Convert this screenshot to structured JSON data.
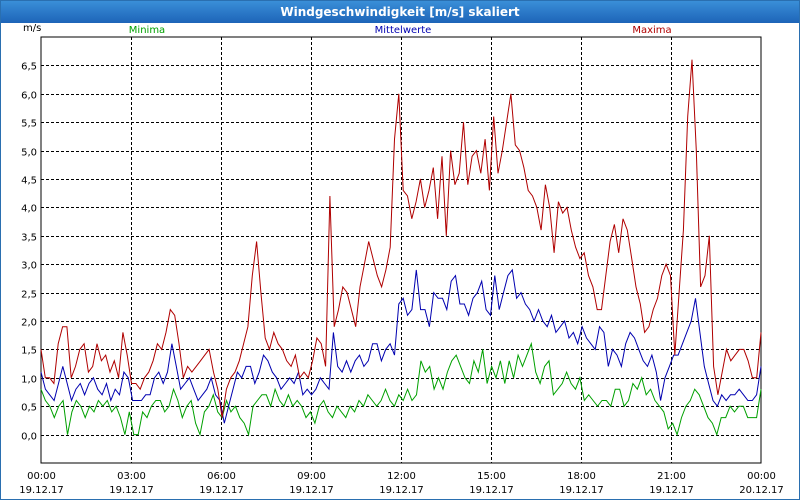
{
  "window": {
    "title": "Windgeschwindigkeit [m/s] skaliert"
  },
  "chart_data": {
    "type": "line",
    "title": "Windgeschwindigkeit [m/s] skaliert",
    "ylabel": "m/s",
    "xlabel": "",
    "ylim": [
      -0.5,
      7.0
    ],
    "yticks": [
      0.0,
      0.5,
      1.0,
      1.5,
      2.0,
      2.5,
      3.0,
      3.5,
      4.0,
      4.5,
      5.0,
      5.5,
      6.0,
      6.5
    ],
    "ytick_labels": [
      "0,0",
      "0,5",
      "1,0",
      "1,5",
      "2,0",
      "2,5",
      "3,0",
      "3,5",
      "4,0",
      "4,5",
      "5,0",
      "5,5",
      "6,0",
      "6,5"
    ],
    "xlim": [
      0,
      24
    ],
    "xticks": [
      {
        "hour": 0,
        "time": "00:00",
        "date": "19.12.17"
      },
      {
        "hour": 3,
        "time": "03:00",
        "date": "19.12.17"
      },
      {
        "hour": 6,
        "time": "06:00",
        "date": "19.12.17"
      },
      {
        "hour": 9,
        "time": "09:00",
        "date": "19.12.17"
      },
      {
        "hour": 12,
        "time": "12:00",
        "date": "19.12.17"
      },
      {
        "hour": 15,
        "time": "15:00",
        "date": "19.12.17"
      },
      {
        "hour": 18,
        "time": "18:00",
        "date": "19.12.17"
      },
      {
        "hour": 21,
        "time": "21:00",
        "date": "19.12.17"
      },
      {
        "hour": 24,
        "time": "00:00",
        "date": "20.12.17"
      }
    ],
    "grid": true,
    "series": [
      {
        "name": "Minima",
        "color": "#00a000",
        "legend_position": "top-left",
        "values": [
          0.8,
          0.6,
          0.5,
          0.3,
          0.5,
          0.6,
          0.0,
          0.4,
          0.6,
          0.5,
          0.3,
          0.5,
          0.4,
          0.6,
          0.5,
          0.6,
          0.4,
          0.5,
          0.3,
          0.0,
          0.4,
          0.0,
          0.0,
          0.4,
          0.3,
          0.5,
          0.6,
          0.6,
          0.4,
          0.5,
          0.8,
          0.6,
          0.3,
          0.5,
          0.6,
          0.2,
          0.0,
          0.4,
          0.5,
          0.7,
          0.4,
          0.3,
          0.6,
          0.4,
          0.5,
          0.3,
          0.2,
          0.0,
          0.5,
          0.6,
          0.7,
          0.7,
          0.5,
          0.8,
          0.6,
          0.5,
          0.7,
          0.5,
          0.6,
          0.5,
          0.3,
          0.4,
          0.2,
          0.5,
          0.6,
          0.4,
          0.3,
          0.5,
          0.4,
          0.3,
          0.5,
          0.4,
          0.6,
          0.5,
          0.7,
          0.6,
          0.5,
          0.6,
          0.8,
          0.6,
          0.5,
          0.7,
          0.6,
          0.8,
          0.6,
          0.7,
          1.3,
          1.1,
          1.2,
          0.8,
          1.0,
          0.8,
          1.1,
          1.3,
          1.4,
          1.2,
          1.0,
          0.9,
          1.3,
          1.1,
          1.5,
          0.9,
          1.2,
          1.0,
          1.3,
          0.9,
          1.3,
          1.0,
          1.4,
          1.2,
          1.4,
          1.6,
          1.1,
          0.9,
          1.2,
          1.3,
          0.7,
          0.8,
          0.9,
          1.1,
          0.9,
          0.8,
          1.0,
          0.6,
          0.7,
          0.6,
          0.5,
          0.6,
          0.6,
          0.5,
          0.8,
          0.8,
          0.5,
          0.6,
          0.9,
          0.8,
          1.0,
          0.7,
          0.8,
          0.6,
          0.5,
          0.4,
          0.1,
          0.2,
          0.0,
          0.3,
          0.5,
          0.6,
          0.8,
          0.7,
          0.5,
          0.3,
          0.2,
          0.0,
          0.3,
          0.3,
          0.5,
          0.4,
          0.5,
          0.5,
          0.3,
          0.3,
          0.3,
          0.8
        ]
      },
      {
        "name": "Mittelwerte",
        "color": "#0000b0",
        "legend_position": "top-center",
        "values": [
          1.1,
          0.8,
          0.7,
          0.6,
          0.9,
          1.2,
          0.9,
          0.6,
          0.8,
          0.9,
          0.7,
          0.9,
          1.0,
          0.8,
          0.7,
          0.9,
          0.6,
          0.8,
          0.7,
          1.1,
          1.0,
          0.6,
          0.6,
          0.6,
          0.7,
          0.7,
          1.0,
          1.1,
          0.9,
          1.1,
          1.6,
          1.2,
          0.8,
          0.9,
          1.0,
          0.8,
          0.6,
          0.7,
          0.8,
          1.0,
          0.7,
          0.6,
          0.2,
          0.5,
          0.8,
          1.1,
          1.0,
          1.2,
          1.2,
          0.9,
          1.1,
          1.4,
          1.3,
          1.1,
          1.0,
          0.8,
          0.9,
          1.0,
          0.9,
          1.1,
          0.7,
          0.8,
          0.7,
          0.8,
          1.0,
          0.9,
          0.8,
          1.8,
          1.2,
          1.1,
          1.3,
          1.1,
          1.3,
          1.4,
          1.2,
          1.3,
          1.6,
          1.6,
          1.3,
          1.5,
          1.6,
          1.4,
          2.3,
          2.4,
          2.1,
          2.2,
          2.9,
          2.2,
          2.2,
          1.9,
          2.5,
          2.4,
          2.4,
          2.2,
          2.7,
          2.8,
          2.3,
          2.3,
          2.1,
          2.4,
          2.5,
          2.7,
          2.2,
          2.1,
          2.8,
          2.2,
          2.5,
          2.8,
          2.9,
          2.4,
          2.5,
          2.3,
          2.2,
          2.0,
          2.2,
          2.0,
          1.9,
          2.1,
          1.8,
          1.9,
          2.0,
          1.7,
          1.8,
          1.6,
          1.9,
          1.7,
          1.6,
          1.5,
          1.9,
          1.8,
          1.2,
          1.5,
          1.4,
          1.2,
          1.6,
          1.8,
          1.7,
          1.5,
          1.3,
          1.2,
          1.4,
          1.1,
          0.6,
          1.0,
          1.2,
          1.4,
          1.4,
          1.6,
          1.8,
          2.0,
          2.4,
          1.8,
          1.2,
          0.9,
          0.6,
          0.5,
          0.7,
          0.6,
          0.7,
          0.7,
          0.8,
          0.7,
          0.6,
          0.6,
          0.7,
          1.2
        ]
      },
      {
        "name": "Maxima",
        "color": "#b00000",
        "legend_position": "top-right",
        "values": [
          1.5,
          1.0,
          1.0,
          0.9,
          1.6,
          1.9,
          1.9,
          1.0,
          1.2,
          1.5,
          1.6,
          1.1,
          1.2,
          1.6,
          1.3,
          1.4,
          1.1,
          1.3,
          1.0,
          1.8,
          1.4,
          0.9,
          0.9,
          0.8,
          1.0,
          1.1,
          1.3,
          1.6,
          1.5,
          1.8,
          2.2,
          2.1,
          1.6,
          1.0,
          1.2,
          1.1,
          1.2,
          1.3,
          1.4,
          1.5,
          1.1,
          0.8,
          0.3,
          0.8,
          1.0,
          1.1,
          1.3,
          1.6,
          1.9,
          2.8,
          3.4,
          2.5,
          1.7,
          1.5,
          1.8,
          1.6,
          1.5,
          1.3,
          1.2,
          1.4,
          1.0,
          1.1,
          1.0,
          1.3,
          1.7,
          1.6,
          1.2,
          4.2,
          1.9,
          2.2,
          2.6,
          2.5,
          2.2,
          1.9,
          2.6,
          3.0,
          3.4,
          3.1,
          2.8,
          2.6,
          2.9,
          3.3,
          5.2,
          6.0,
          4.3,
          4.2,
          3.8,
          4.1,
          4.5,
          4.0,
          4.3,
          4.7,
          3.8,
          4.9,
          3.5,
          5.0,
          4.4,
          4.6,
          5.5,
          4.4,
          4.9,
          5.0,
          4.6,
          5.2,
          4.3,
          5.6,
          4.6,
          5.0,
          5.5,
          6.0,
          5.1,
          5.0,
          4.7,
          4.3,
          4.2,
          4.0,
          3.6,
          4.4,
          4.0,
          3.2,
          4.1,
          3.9,
          4.0,
          3.6,
          3.3,
          3.1,
          3.2,
          2.8,
          2.6,
          2.2,
          2.2,
          2.8,
          3.4,
          3.7,
          3.2,
          3.8,
          3.6,
          3.1,
          2.6,
          2.3,
          1.8,
          1.9,
          2.2,
          2.4,
          2.8,
          3.0,
          2.8,
          1.4,
          2.5,
          3.6,
          5.6,
          6.6,
          5.0,
          2.6,
          2.8,
          3.5,
          1.2,
          0.7,
          1.1,
          1.5,
          1.3,
          1.4,
          1.5,
          1.5,
          1.3,
          1.0,
          1.0,
          1.8
        ]
      }
    ]
  }
}
